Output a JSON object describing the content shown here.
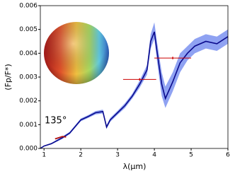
{
  "chart_data": {
    "type": "line",
    "x_label": "λ(μm)",
    "y_label": "(Fp/F*)",
    "annotation": "135°",
    "xlim": [
      0.9,
      6
    ],
    "xticks": [
      1,
      2,
      3,
      4,
      5,
      6
    ],
    "ylim": [
      0,
      0.006
    ],
    "yticks": [
      {
        "value": 0,
        "label": "0.000"
      },
      0.001,
      0.002,
      0.003,
      0.004,
      0.005,
      0.006
    ],
    "x": [
      0.9,
      1.0,
      1.2,
      1.5,
      1.7,
      2.0,
      2.2,
      2.4,
      2.6,
      2.7,
      2.8,
      3.0,
      3.2,
      3.4,
      3.6,
      3.8,
      3.9,
      4.0,
      4.07,
      4.2,
      4.3,
      4.5,
      4.7,
      4.9,
      5.1,
      5.4,
      5.7,
      6.0
    ],
    "series": [
      {
        "color": "#0a0a8c",
        "values": [
          0,
          0.0001,
          0.0002,
          0.00045,
          0.00065,
          0.0012,
          0.00134,
          0.0015,
          0.00155,
          0.0009,
          0.0012,
          0.0015,
          0.0018,
          0.0022,
          0.0027,
          0.0033,
          0.0045,
          0.0049,
          0.0041,
          0.0027,
          0.0021,
          0.0028,
          0.0036,
          0.004,
          0.0043,
          0.0045,
          0.0044,
          0.0047
        ]
      }
    ],
    "band": {
      "color": "#8fa2f2",
      "lower": [
        0,
        8e-05,
        0.00017,
        0.0004,
        0.0006,
        0.00114,
        0.00128,
        0.00143,
        0.00147,
        0.00082,
        0.00112,
        0.00142,
        0.0017,
        0.0021,
        0.00255,
        0.0031,
        0.0042,
        0.0046,
        0.0037,
        0.0022,
        0.0017,
        0.0024,
        0.0032,
        0.0037,
        0.004,
        0.0042,
        0.0041,
        0.0044
      ],
      "upper": [
        3e-05,
        0.00012,
        0.00023,
        0.0005,
        0.0007,
        0.00126,
        0.0014,
        0.00157,
        0.00163,
        0.00098,
        0.00128,
        0.00158,
        0.0019,
        0.0023,
        0.00285,
        0.0035,
        0.0048,
        0.0053,
        0.0045,
        0.0032,
        0.0026,
        0.0032,
        0.004,
        0.0043,
        0.0046,
        0.0048,
        0.0047,
        0.005
      ]
    },
    "highlight": {
      "color": "#b01010",
      "x": [
        1.3,
        1.4,
        1.5,
        1.6
      ],
      "values": [
        0.0004,
        0.00045,
        0.0005,
        0.00048
      ]
    },
    "observations": {
      "color": "#cc0000",
      "x": [
        3.6,
        4.5
      ],
      "xerr": [
        0.45,
        0.5
      ],
      "values": [
        0.0029,
        0.0038
      ],
      "yerr": [
        5e-05,
        5e-05
      ]
    }
  }
}
